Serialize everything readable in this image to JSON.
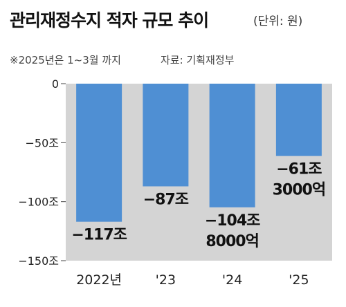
{
  "header": {
    "title": "관리재정수지 적자 규모 추이",
    "unit": "(단위: 원)",
    "note": "※2025년은 1~3월 까지",
    "source": "자료: 기획재정부"
  },
  "colors": {
    "bar": "#4f8fd3",
    "plot_bg": "#d4d4d4"
  },
  "chart_data": {
    "type": "bar",
    "title": "관리재정수지 적자 규모 추이",
    "unit": "(단위: 원)",
    "categories": [
      "2022년",
      "'23",
      "'24",
      "'25"
    ],
    "values": [
      -117,
      -87,
      -104.8,
      -61.3
    ],
    "value_unit": "조",
    "data_labels": [
      [
        "−117조"
      ],
      [
        "−87조"
      ],
      [
        "−104조",
        "8000억"
      ],
      [
        "−61조",
        "3000억"
      ]
    ],
    "ylim": [
      -150,
      0
    ],
    "yticks": [
      0,
      -50,
      -100,
      -150
    ],
    "ytick_labels": [
      "0",
      "−50조",
      "−100조",
      "−150조"
    ],
    "grid": false,
    "legend": "none"
  }
}
